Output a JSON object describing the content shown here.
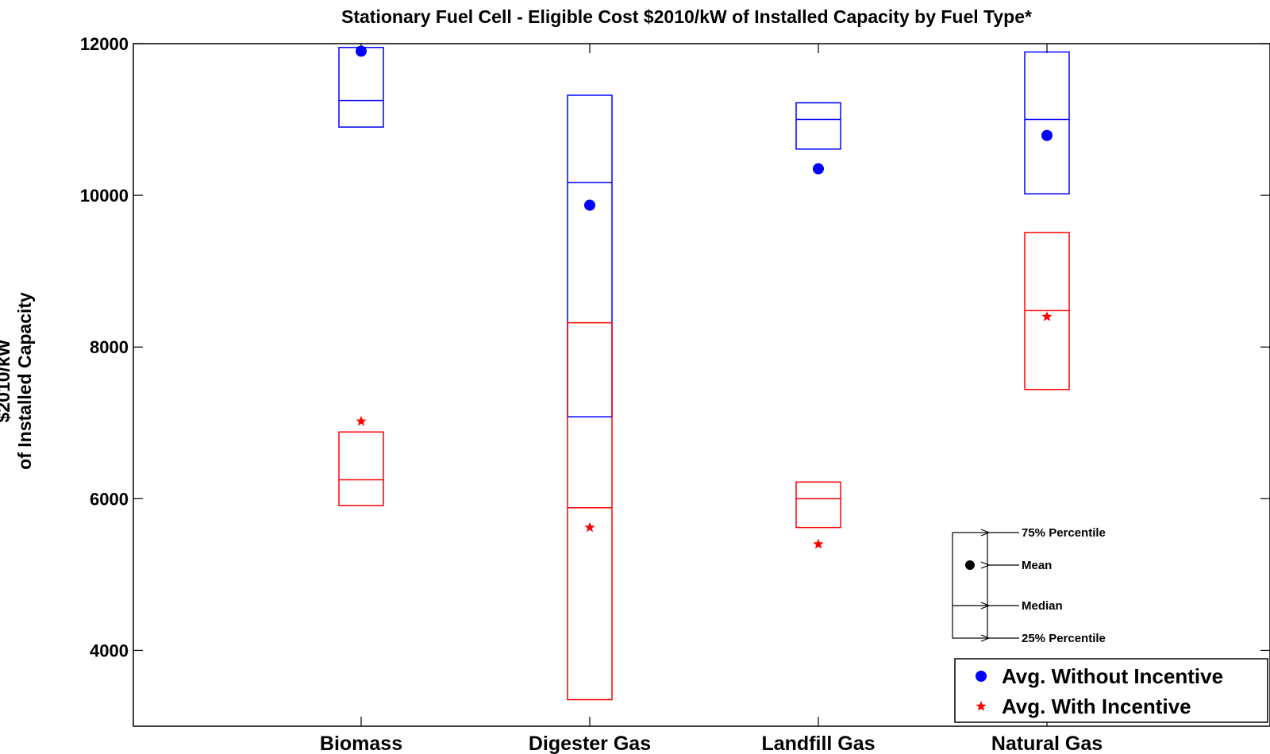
{
  "chart_data": {
    "type": "box",
    "title": "Stationary Fuel Cell - Eligible Cost $2010/kW of Installed Capacity by Fuel Type*",
    "ylabel": [
      "$2010/kW",
      "of Installed Capacity"
    ],
    "xlabel": "",
    "ylim": [
      3000,
      12000
    ],
    "yticks": [
      4000,
      6000,
      8000,
      10000,
      12000
    ],
    "categories": [
      "Biomass",
      "Digester Gas",
      "Landfill Gas",
      "Natural Gas"
    ],
    "series": [
      {
        "name": "Avg. Without Incentive",
        "color": "#0000ff",
        "marker": "circle",
        "boxes": [
          {
            "q1": 10900,
            "median": 11250,
            "q3": 11950,
            "mean": 11900
          },
          {
            "q1": 7080,
            "median": 10170,
            "q3": 11320,
            "mean": 9870
          },
          {
            "q1": 10610,
            "median": 11000,
            "q3": 11220,
            "mean": 10350
          },
          {
            "q1": 10020,
            "median": 11000,
            "q3": 11890,
            "mean": 10790
          }
        ]
      },
      {
        "name": "Avg. With Incentive",
        "color": "#ff0000",
        "marker": "star",
        "boxes": [
          {
            "q1": 5910,
            "median": 6250,
            "q3": 6880,
            "mean": 7020
          },
          {
            "q1": 3350,
            "median": 5880,
            "q3": 8320,
            "mean": 5620
          },
          {
            "q1": 5620,
            "median": 6000,
            "q3": 6220,
            "mean": 5400
          },
          {
            "q1": 7440,
            "median": 8480,
            "q3": 9510,
            "mean": 8400
          }
        ]
      }
    ],
    "box_key": {
      "labels": [
        "75% Percentile",
        "Mean",
        "Median",
        "25% Percentile"
      ]
    },
    "legend_position": "bottom-right"
  }
}
